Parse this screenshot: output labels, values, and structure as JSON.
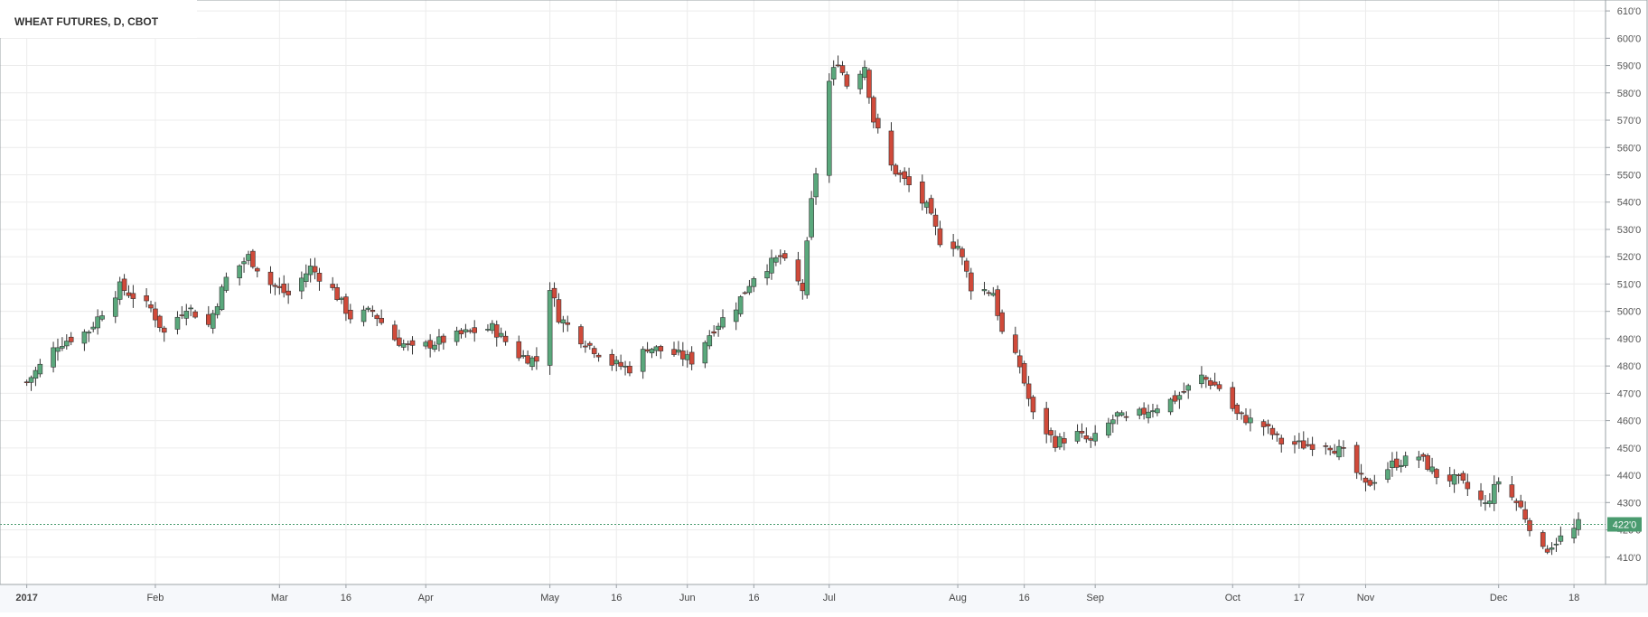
{
  "chart_data": {
    "type": "candlestick",
    "title": "WHEAT FUTURES, D, CBOT",
    "last_price_label": "422'0",
    "last_price": 422,
    "ylim": [
      400,
      614
    ],
    "y_ticks": [
      410,
      420,
      430,
      440,
      450,
      460,
      470,
      480,
      490,
      500,
      510,
      520,
      530,
      540,
      550,
      560,
      570,
      580,
      590,
      600,
      610
    ],
    "y_tick_labels": [
      "410'0",
      "420'0",
      "430'0",
      "440'0",
      "450'0",
      "460'0",
      "470'0",
      "480'0",
      "490'0",
      "500'0",
      "510'0",
      "520'0",
      "530'0",
      "540'0",
      "550'0",
      "560'0",
      "570'0",
      "580'0",
      "590'0",
      "600'0",
      "610'0"
    ],
    "x_range": [
      "2016-12-30",
      "2017-12-19"
    ],
    "x_ticks": [
      {
        "date": "2017-01-03",
        "label": "2017",
        "bold": true
      },
      {
        "date": "2017-02-01",
        "label": "Feb",
        "bold": false
      },
      {
        "date": "2017-03-01",
        "label": "Mar",
        "bold": false
      },
      {
        "date": "2017-03-16",
        "label": "16",
        "bold": false
      },
      {
        "date": "2017-04-03",
        "label": "Apr",
        "bold": false
      },
      {
        "date": "2017-05-01",
        "label": "May",
        "bold": false
      },
      {
        "date": "2017-05-16",
        "label": "16",
        "bold": false
      },
      {
        "date": "2017-06-01",
        "label": "Jun",
        "bold": false
      },
      {
        "date": "2017-06-16",
        "label": "16",
        "bold": false
      },
      {
        "date": "2017-07-03",
        "label": "Jul",
        "bold": false
      },
      {
        "date": "2017-08-01",
        "label": "Aug",
        "bold": false
      },
      {
        "date": "2017-08-16",
        "label": "16",
        "bold": false
      },
      {
        "date": "2017-09-01",
        "label": "Sep",
        "bold": false
      },
      {
        "date": "2017-10-02",
        "label": "Oct",
        "bold": false
      },
      {
        "date": "2017-10-17",
        "label": "17",
        "bold": false
      },
      {
        "date": "2017-11-01",
        "label": "Nov",
        "bold": false
      },
      {
        "date": "2017-12-01",
        "label": "Dec",
        "bold": false
      },
      {
        "date": "2017-12-18",
        "label": "18",
        "bold": false
      }
    ],
    "price_path": [
      [
        "2017-01-03",
        474
      ],
      [
        "2017-01-10",
        488
      ],
      [
        "2017-01-17",
        493
      ],
      [
        "2017-01-24",
        509
      ],
      [
        "2017-01-31",
        501
      ],
      [
        "2017-02-03",
        492
      ],
      [
        "2017-02-08",
        502
      ],
      [
        "2017-02-13",
        495
      ],
      [
        "2017-02-17",
        512
      ],
      [
        "2017-02-22",
        520
      ],
      [
        "2017-02-27",
        510
      ],
      [
        "2017-03-03",
        506
      ],
      [
        "2017-03-08",
        516
      ],
      [
        "2017-03-13",
        508
      ],
      [
        "2017-03-17",
        498
      ],
      [
        "2017-03-22",
        500
      ],
      [
        "2017-03-27",
        490
      ],
      [
        "2017-03-31",
        486
      ],
      [
        "2017-04-06",
        489
      ],
      [
        "2017-04-12",
        492
      ],
      [
        "2017-04-18",
        494
      ],
      [
        "2017-04-24",
        484
      ],
      [
        "2017-04-28",
        482
      ],
      [
        "2017-05-01",
        509
      ],
      [
        "2017-05-03",
        498
      ],
      [
        "2017-05-08",
        490
      ],
      [
        "2017-05-15",
        481
      ],
      [
        "2017-05-19",
        479
      ],
      [
        "2017-05-23",
        487
      ],
      [
        "2017-05-30",
        484
      ],
      [
        "2017-06-02",
        482
      ],
      [
        "2017-06-07",
        494
      ],
      [
        "2017-06-12",
        502
      ],
      [
        "2017-06-16",
        513
      ],
      [
        "2017-06-22",
        520
      ],
      [
        "2017-06-27",
        508
      ],
      [
        "2017-06-29",
        540
      ],
      [
        "2017-07-03",
        584
      ],
      [
        "2017-07-05",
        592
      ],
      [
        "2017-07-07",
        583
      ],
      [
        "2017-07-11",
        590
      ],
      [
        "2017-07-13",
        570
      ],
      [
        "2017-07-17",
        553
      ],
      [
        "2017-07-21",
        546
      ],
      [
        "2017-07-25",
        538
      ],
      [
        "2017-07-28",
        526
      ],
      [
        "2017-08-01",
        524
      ],
      [
        "2017-08-04",
        509
      ],
      [
        "2017-08-09",
        507
      ],
      [
        "2017-08-11",
        492
      ],
      [
        "2017-08-15",
        480
      ],
      [
        "2017-08-18",
        462
      ],
      [
        "2017-08-23",
        452
      ],
      [
        "2017-08-28",
        455
      ],
      [
        "2017-08-31",
        452
      ],
      [
        "2017-09-06",
        462
      ],
      [
        "2017-09-08",
        460
      ],
      [
        "2017-09-13",
        464
      ],
      [
        "2017-09-19",
        468
      ],
      [
        "2017-09-25",
        476
      ],
      [
        "2017-09-29",
        472
      ],
      [
        "2017-10-03",
        462
      ],
      [
        "2017-10-09",
        458
      ],
      [
        "2017-10-13",
        452
      ],
      [
        "2017-10-18",
        451
      ],
      [
        "2017-10-23",
        452
      ],
      [
        "2017-10-27",
        448
      ],
      [
        "2017-11-01",
        436
      ],
      [
        "2017-11-07",
        444
      ],
      [
        "2017-11-13",
        447
      ],
      [
        "2017-11-17",
        440
      ],
      [
        "2017-11-22",
        438
      ],
      [
        "2017-11-28",
        429
      ],
      [
        "2017-12-01",
        438
      ],
      [
        "2017-12-06",
        428
      ],
      [
        "2017-12-11",
        412
      ],
      [
        "2017-12-14",
        416
      ],
      [
        "2017-12-18",
        420
      ],
      [
        "2017-12-19",
        422
      ]
    ]
  }
}
